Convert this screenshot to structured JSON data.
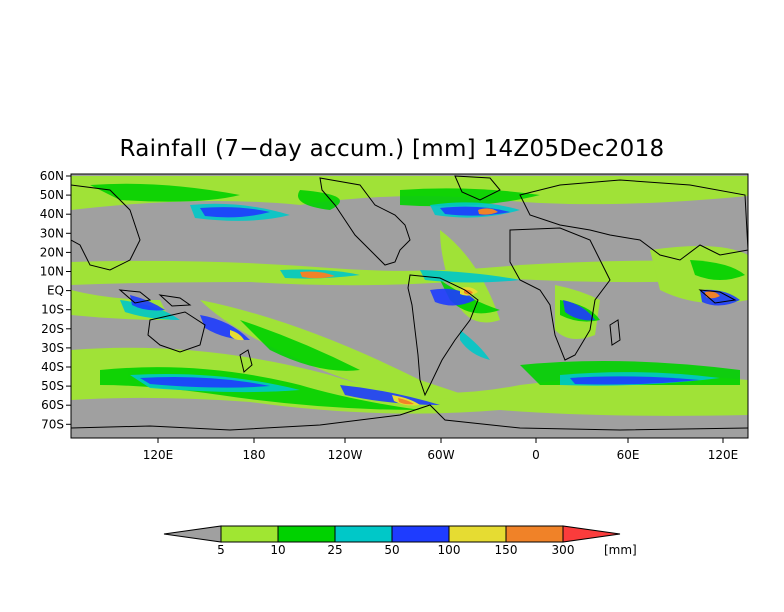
{
  "title": "Rainfall (7−day accum.) [mm] 14Z05Dec2018",
  "map": {
    "lat_labels": [
      "60N",
      "50N",
      "40N",
      "30N",
      "20N",
      "10N",
      "EQ",
      "10S",
      "20S",
      "30S",
      "40S",
      "50S",
      "60S",
      "70S"
    ],
    "lon_labels": [
      "120E",
      "180",
      "120W",
      "60W",
      "0",
      "60E",
      "120E"
    ],
    "land_color": "#a0a0a0"
  },
  "legend": {
    "unit": "[mm]",
    "ticks": [
      "5",
      "10",
      "25",
      "50",
      "100",
      "150",
      "300"
    ],
    "colors": [
      "#a0a0a0",
      "#a0e632",
      "#00d200",
      "#00c8c8",
      "#1e3cff",
      "#e6dc32",
      "#f08228",
      "#fa3c3c"
    ]
  }
}
